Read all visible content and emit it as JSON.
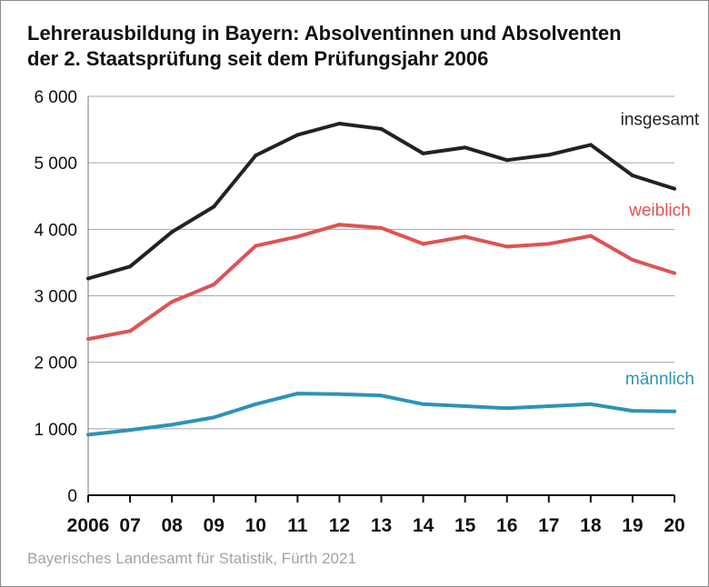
{
  "chart_data": {
    "type": "line",
    "title_lines": [
      "Lehrerausbildung in Bayern: Absolventinnen und Absolventen",
      "der 2. Staatsprüfung seit dem Prüfungsjahr 2006"
    ],
    "source": "Bayerisches Landesamt für Statistik, Fürth 2021",
    "categories": [
      "2006",
      "07",
      "08",
      "09",
      "10",
      "11",
      "12",
      "13",
      "14",
      "15",
      "16",
      "17",
      "18",
      "19",
      "20"
    ],
    "y_ticks": [
      {
        "value": 0,
        "label": "0"
      },
      {
        "value": 1000,
        "label": "1 000"
      },
      {
        "value": 2000,
        "label": "2 000"
      },
      {
        "value": 3000,
        "label": "3 000"
      },
      {
        "value": 4000,
        "label": "4 000"
      },
      {
        "value": 5000,
        "label": "5 000"
      },
      {
        "value": 6000,
        "label": "6 000"
      }
    ],
    "ylim": [
      0,
      6000
    ],
    "grid": true,
    "series": [
      {
        "name": "insgesamt",
        "color": "#222222",
        "values": [
          3260,
          3440,
          3960,
          4340,
          5110,
          5420,
          5590,
          5510,
          5140,
          5230,
          5040,
          5120,
          5270,
          4810,
          4610
        ]
      },
      {
        "name": "weiblich",
        "color": "#e05252",
        "values": [
          2350,
          2470,
          2910,
          3170,
          3750,
          3890,
          4070,
          4020,
          3780,
          3890,
          3740,
          3780,
          3900,
          3540,
          3340
        ]
      },
      {
        "name": "männlich",
        "color": "#2d93b5",
        "values": [
          910,
          980,
          1060,
          1170,
          1370,
          1530,
          1520,
          1500,
          1370,
          1340,
          1310,
          1340,
          1370,
          1270,
          1260
        ]
      }
    ]
  }
}
